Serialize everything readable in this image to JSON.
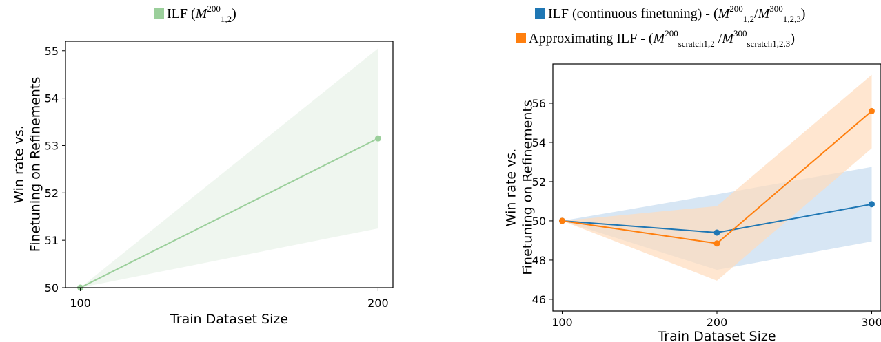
{
  "chart_data": [
    {
      "type": "line",
      "legend_position": "top",
      "legend": [
        {
          "prefix": "ILF (",
          "math_base": "M",
          "math_sup": "200",
          "math_sub": "1,2",
          "suffix": ")",
          "color": "#9bcf9b"
        }
      ],
      "xlabel": "Train Dataset Size",
      "ylabel": [
        "Win rate vs.",
        "Finetuning on Refinements"
      ],
      "x_ticks": [
        "100",
        "200"
      ],
      "y_ticks": [
        "50",
        "51",
        "52",
        "53",
        "54",
        "55"
      ],
      "xlim": [
        95,
        205
      ],
      "ylim": [
        50,
        55.2
      ],
      "series": [
        {
          "color": "#9bcf9b",
          "band_color": "#e8f2e8",
          "x": [
            100,
            200
          ],
          "y": [
            50.0,
            53.15
          ],
          "lower": [
            50.0,
            51.25
          ],
          "upper": [
            50.0,
            55.05
          ]
        }
      ]
    },
    {
      "type": "line",
      "legend_position": "top",
      "legend": [
        {
          "prefix": "ILF (continuous finetuning) - (",
          "math_base": "M",
          "math_sup": "200",
          "math_sub": "1,2",
          "mid": "/",
          "math2_base": "M",
          "math2_sup": "300",
          "math2_sub": "1,2,3",
          "suffix": ")",
          "color": "#1f77b4"
        },
        {
          "prefix": "Approximating ILF - (",
          "math_base": "M",
          "math_sup": "200",
          "math_sub": "scratch1,2",
          "mid": " /",
          "math2_base": "M",
          "math2_sup": "300",
          "math2_sub": "scratch1,2,3",
          "suffix": ")",
          "color": "#ff7f0e"
        }
      ],
      "xlabel": "Train Dataset Size",
      "ylabel": [
        "Win rate vs.",
        "Finetuning on Refinements"
      ],
      "x_ticks": [
        "100",
        "200",
        "300"
      ],
      "y_ticks": [
        "46",
        "48",
        "50",
        "52",
        "54",
        "56"
      ],
      "xlim": [
        94,
        306
      ],
      "ylim": [
        45.4,
        58.0
      ],
      "series": [
        {
          "color": "#1f77b4",
          "band_color": "#c6dbef",
          "x": [
            100,
            200,
            300
          ],
          "y": [
            50.0,
            49.4,
            50.85
          ],
          "lower": [
            50.0,
            47.5,
            48.95
          ],
          "upper": [
            50.0,
            51.35,
            52.75
          ]
        },
        {
          "color": "#ff7f0e",
          "band_color": "#ffdcbc",
          "x": [
            100,
            200,
            300
          ],
          "y": [
            50.0,
            48.85,
            55.6
          ],
          "lower": [
            50.0,
            46.95,
            53.7
          ],
          "upper": [
            50.0,
            50.75,
            57.45
          ]
        }
      ]
    }
  ]
}
